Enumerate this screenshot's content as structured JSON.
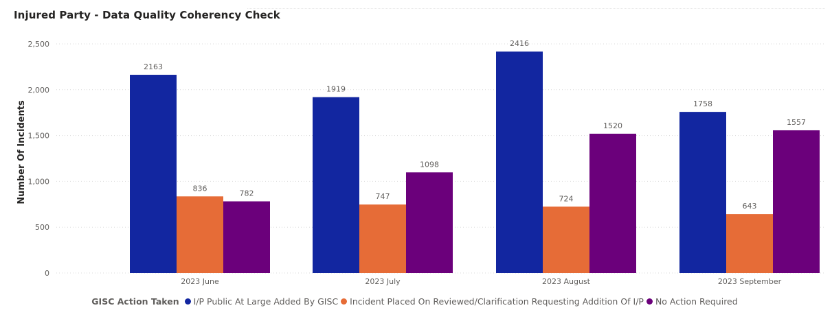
{
  "header": {
    "title": "Injured Party - Data Quality Coherency Check"
  },
  "chart_data": {
    "type": "bar",
    "title": "Injured Party - Data Quality Coherency Check",
    "xlabel": "",
    "ylabel": "Number Of Incidents",
    "ylim": [
      0,
      2500
    ],
    "yticks": [
      0,
      500,
      1000,
      1500,
      2000,
      2500
    ],
    "ytick_labels": [
      "0",
      "500",
      "1,000",
      "1,500",
      "2,000",
      "2,500"
    ],
    "grid": true,
    "categories": [
      "2023 June",
      "2023 July",
      "2023 August",
      "2023 September"
    ],
    "legend_title": "GISC Action Taken",
    "legend_position": "bottom",
    "series": [
      {
        "name": "I/P Public At Large Added By GISC",
        "color": "#1226a0",
        "values": [
          2163,
          1919,
          2416,
          1758
        ]
      },
      {
        "name": "Incident Placed On Reviewed/Clarification Requesting Addition Of I/P",
        "color": "#e66c37",
        "values": [
          836,
          747,
          724,
          643
        ]
      },
      {
        "name": "No Action Required",
        "color": "#6b007b",
        "values": [
          782,
          1098,
          1520,
          1557
        ]
      }
    ]
  }
}
